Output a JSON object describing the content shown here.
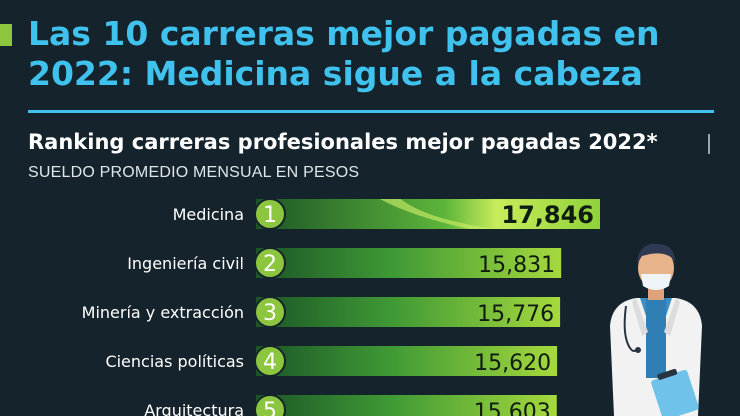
{
  "headline": {
    "line1": "Las 10 carreras mejor pagadas en",
    "line2": "2022: Medicina sigue a la cabeza"
  },
  "subtitle": "Ranking carreras profesionales mejor pagadas 2022*",
  "units": "SUELDO PROMEDIO MENSUAL EN PESOS",
  "colors": {
    "background": "#15242c",
    "headline": "#3fc3ee",
    "accent": "#8cc63f",
    "bar_dark": "#1e5d2a",
    "bar_light": "#a6d93d",
    "badge": "#8cc63f"
  },
  "icons": {
    "illustration": "doctor-illustration"
  },
  "chart_data": {
    "type": "bar",
    "orientation": "horizontal",
    "title": "Ranking carreras profesionales mejor pagadas 2022*",
    "xlabel": "SUELDO PROMEDIO MENSUAL EN PESOS",
    "ranks": [
      "1",
      "2",
      "3",
      "4",
      "5"
    ],
    "categories": [
      "Medicina",
      "Ingeniería civil",
      "Minería y extracción",
      "Ciencias políticas",
      "Arquitectura"
    ],
    "values": [
      17846,
      15831,
      15776,
      15620,
      15603
    ],
    "value_labels": [
      "17,846",
      "15,831",
      "15,776",
      "15,620",
      "15,603"
    ]
  }
}
